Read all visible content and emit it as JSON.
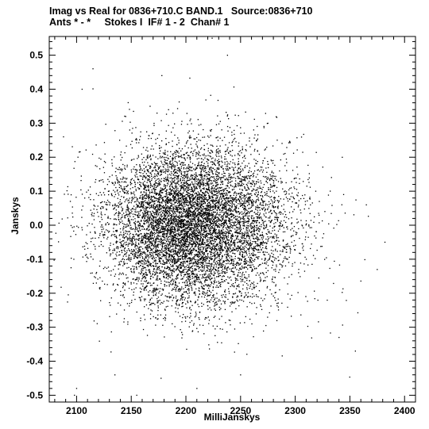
{
  "chart_data": {
    "type": "scatter",
    "title": "Imag vs Real for 0836+710.C BAND.1   Source:0836+710",
    "subtitle": "Ants * - *     Stokes I  IF# 1 - 2  Chan# 1",
    "xlabel": "MilliJanskys",
    "ylabel": "Janskys",
    "xlim": [
      2075,
      2410
    ],
    "ylim": [
      -0.52,
      0.555
    ],
    "x_ticks": [
      "2100",
      "2150",
      "2200",
      "2250",
      "2300",
      "2350",
      "2400"
    ],
    "y_ticks": [
      "0.5",
      "0.4",
      "0.3",
      "0.2",
      "0.1",
      "0.0",
      "-0.1",
      "-0.2",
      "-0.3",
      "-0.4",
      "-0.5"
    ],
    "grid": false,
    "point_color": "#000000",
    "distribution": {
      "n_points": 9000,
      "x_center": 2205,
      "x_spread": 38,
      "y_center": 0.0,
      "y_spread": 0.115
    },
    "outliers": [
      {
        "x": 2115,
        "y": 0.46
      },
      {
        "x": 2238,
        "y": 0.5
      },
      {
        "x": 2224,
        "y": 0.55
      },
      {
        "x": 2088,
        "y": 0.26
      },
      {
        "x": 2105,
        "y": 0.4
      },
      {
        "x": 2100,
        "y": -0.48
      },
      {
        "x": 2098,
        "y": -0.5
      },
      {
        "x": 2135,
        "y": -0.44
      },
      {
        "x": 2155,
        "y": -0.5
      },
      {
        "x": 2355,
        "y": -0.37
      },
      {
        "x": 2382,
        "y": -0.05
      },
      {
        "x": 2365,
        "y": 0.06
      },
      {
        "x": 2340,
        "y": -0.33
      },
      {
        "x": 2375,
        "y": -0.13
      },
      {
        "x": 2178,
        "y": 0.44
      },
      {
        "x": 2210,
        "y": -0.48
      },
      {
        "x": 2250,
        "y": -0.44
      },
      {
        "x": 2275,
        "y": 0.3
      }
    ]
  }
}
